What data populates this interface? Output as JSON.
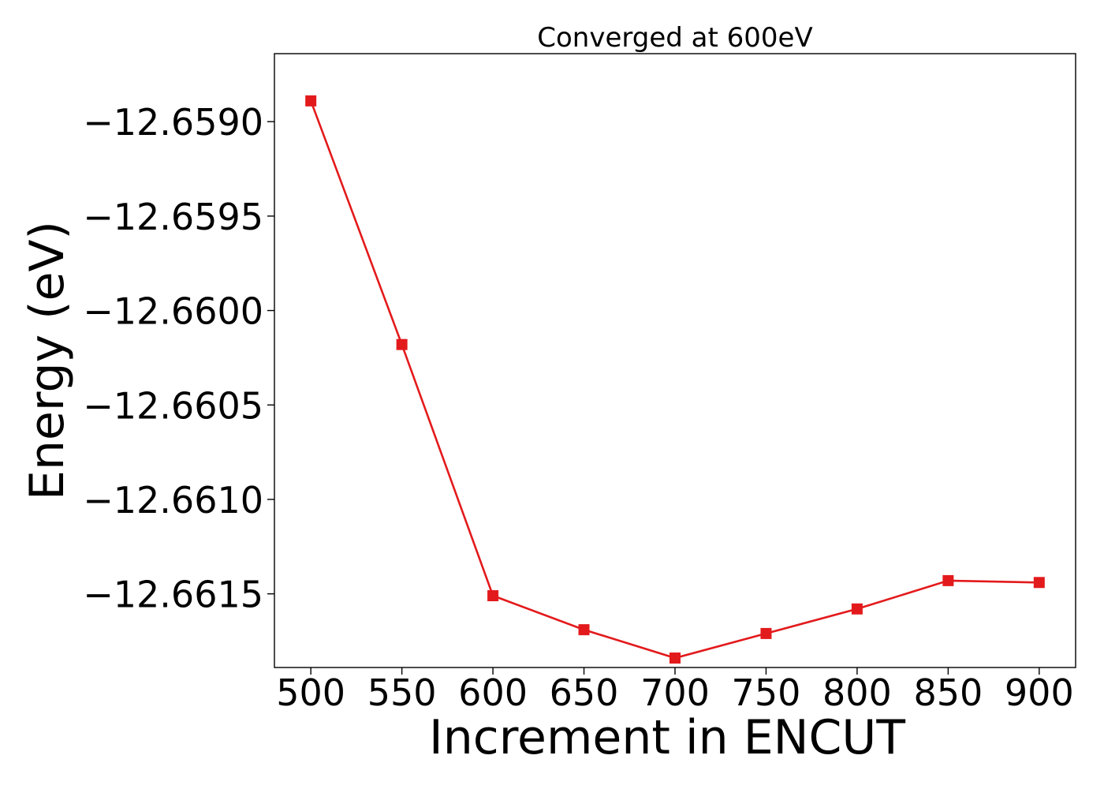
{
  "chart_data": {
    "type": "line",
    "title": "Converged at 600eV",
    "xlabel": "Increment in ENCUT",
    "ylabel": "Energy (eV)",
    "x": [
      500,
      550,
      600,
      650,
      700,
      750,
      800,
      850,
      900
    ],
    "x_ticks": [
      "500",
      "550",
      "600",
      "650",
      "700",
      "750",
      "800",
      "850",
      "900"
    ],
    "y_ticks": [
      -12.659,
      -12.6595,
      -12.66,
      -12.6605,
      -12.661,
      -12.6615
    ],
    "y_tick_labels": [
      "−12.6590",
      "−12.6595",
      "−12.6600",
      "−12.6605",
      "−12.6610",
      "−12.6615"
    ],
    "xlim": [
      480,
      920
    ],
    "ylim": [
      -12.66189,
      -12.65864
    ],
    "grid": false,
    "series": [
      {
        "values": [
          -12.65889,
          -12.66018,
          -12.66151,
          -12.66169,
          -12.66184,
          -12.66171,
          -12.66158,
          -12.66143,
          -12.66144
        ],
        "color": "#e31a1c",
        "marker": "square"
      }
    ]
  }
}
